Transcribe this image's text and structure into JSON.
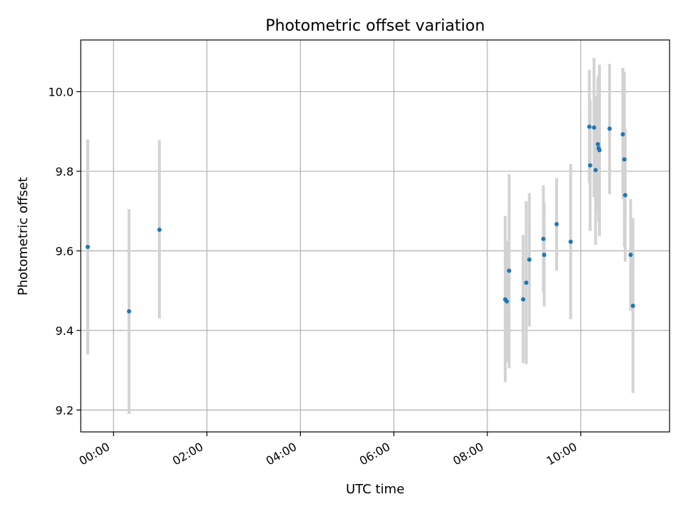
{
  "chart_data": {
    "type": "scatter",
    "title": "Photometric offset variation",
    "xlabel": "UTC time",
    "ylabel": "Photometric offset",
    "x_unit": "hours (UTC)",
    "xlim": [
      "23:18",
      "11:54"
    ],
    "ylim": [
      9.145,
      10.13
    ],
    "grid": true,
    "x_ticks": [
      "00:00",
      "02:00",
      "04:00",
      "06:00",
      "08:00",
      "10:00"
    ],
    "y_ticks": [
      9.2,
      9.4,
      9.6,
      9.8,
      10.0
    ],
    "y_tick_labels": [
      "9.2",
      "9.4",
      "9.6",
      "9.8",
      "10.0"
    ],
    "colors": {
      "point": "#1f77b4",
      "errorbar": "#d3d3d3",
      "grid": "#b0b0b0",
      "axes": "#000000"
    },
    "points": [
      {
        "time": "23:27",
        "y": 9.61,
        "ylow": 9.34,
        "yhigh": 9.88
      },
      {
        "time": "00:20",
        "y": 9.448,
        "ylow": 9.19,
        "yhigh": 9.705
      },
      {
        "time": "00:59",
        "y": 9.653,
        "ylow": 9.43,
        "yhigh": 9.878
      },
      {
        "time": "08:23",
        "y": 9.478,
        "ylow": 9.27,
        "yhigh": 9.688
      },
      {
        "time": "08:25",
        "y": 9.473,
        "ylow": 9.32,
        "yhigh": 9.625
      },
      {
        "time": "08:28",
        "y": 9.55,
        "ylow": 9.305,
        "yhigh": 9.793
      },
      {
        "time": "08:46",
        "y": 9.478,
        "ylow": 9.318,
        "yhigh": 9.64
      },
      {
        "time": "08:50",
        "y": 9.52,
        "ylow": 9.315,
        "yhigh": 9.725
      },
      {
        "time": "08:54",
        "y": 9.578,
        "ylow": 9.41,
        "yhigh": 9.745
      },
      {
        "time": "09:12",
        "y": 9.63,
        "ylow": 9.495,
        "yhigh": 9.765
      },
      {
        "time": "09:13",
        "y": 9.59,
        "ylow": 9.46,
        "yhigh": 9.72
      },
      {
        "time": "09:29",
        "y": 9.667,
        "ylow": 9.55,
        "yhigh": 9.783
      },
      {
        "time": "09:47",
        "y": 9.623,
        "ylow": 9.428,
        "yhigh": 9.818
      },
      {
        "time": "10:11",
        "y": 9.912,
        "ylow": 9.77,
        "yhigh": 10.055
      },
      {
        "time": "10:12",
        "y": 9.815,
        "ylow": 9.65,
        "yhigh": 9.98
      },
      {
        "time": "10:17",
        "y": 9.91,
        "ylow": 9.735,
        "yhigh": 10.085
      },
      {
        "time": "10:19",
        "y": 9.803,
        "ylow": 9.615,
        "yhigh": 9.99
      },
      {
        "time": "10:22",
        "y": 9.868,
        "ylow": 9.7,
        "yhigh": 10.035
      },
      {
        "time": "10:23",
        "y": 9.858,
        "ylow": 9.673,
        "yhigh": 10.043
      },
      {
        "time": "10:24",
        "y": 9.853,
        "ylow": 9.637,
        "yhigh": 10.068
      },
      {
        "time": "10:37",
        "y": 9.907,
        "ylow": 9.743,
        "yhigh": 10.07
      },
      {
        "time": "10:54",
        "y": 9.893,
        "ylow": 9.73,
        "yhigh": 10.06
      },
      {
        "time": "10:56",
        "y": 9.83,
        "ylow": 9.61,
        "yhigh": 10.05
      },
      {
        "time": "10:57",
        "y": 9.74,
        "ylow": 9.573,
        "yhigh": 9.907
      },
      {
        "time": "11:04",
        "y": 9.59,
        "ylow": 9.45,
        "yhigh": 9.73
      },
      {
        "time": "11:07",
        "y": 9.462,
        "ylow": 9.243,
        "yhigh": 9.682
      }
    ]
  }
}
